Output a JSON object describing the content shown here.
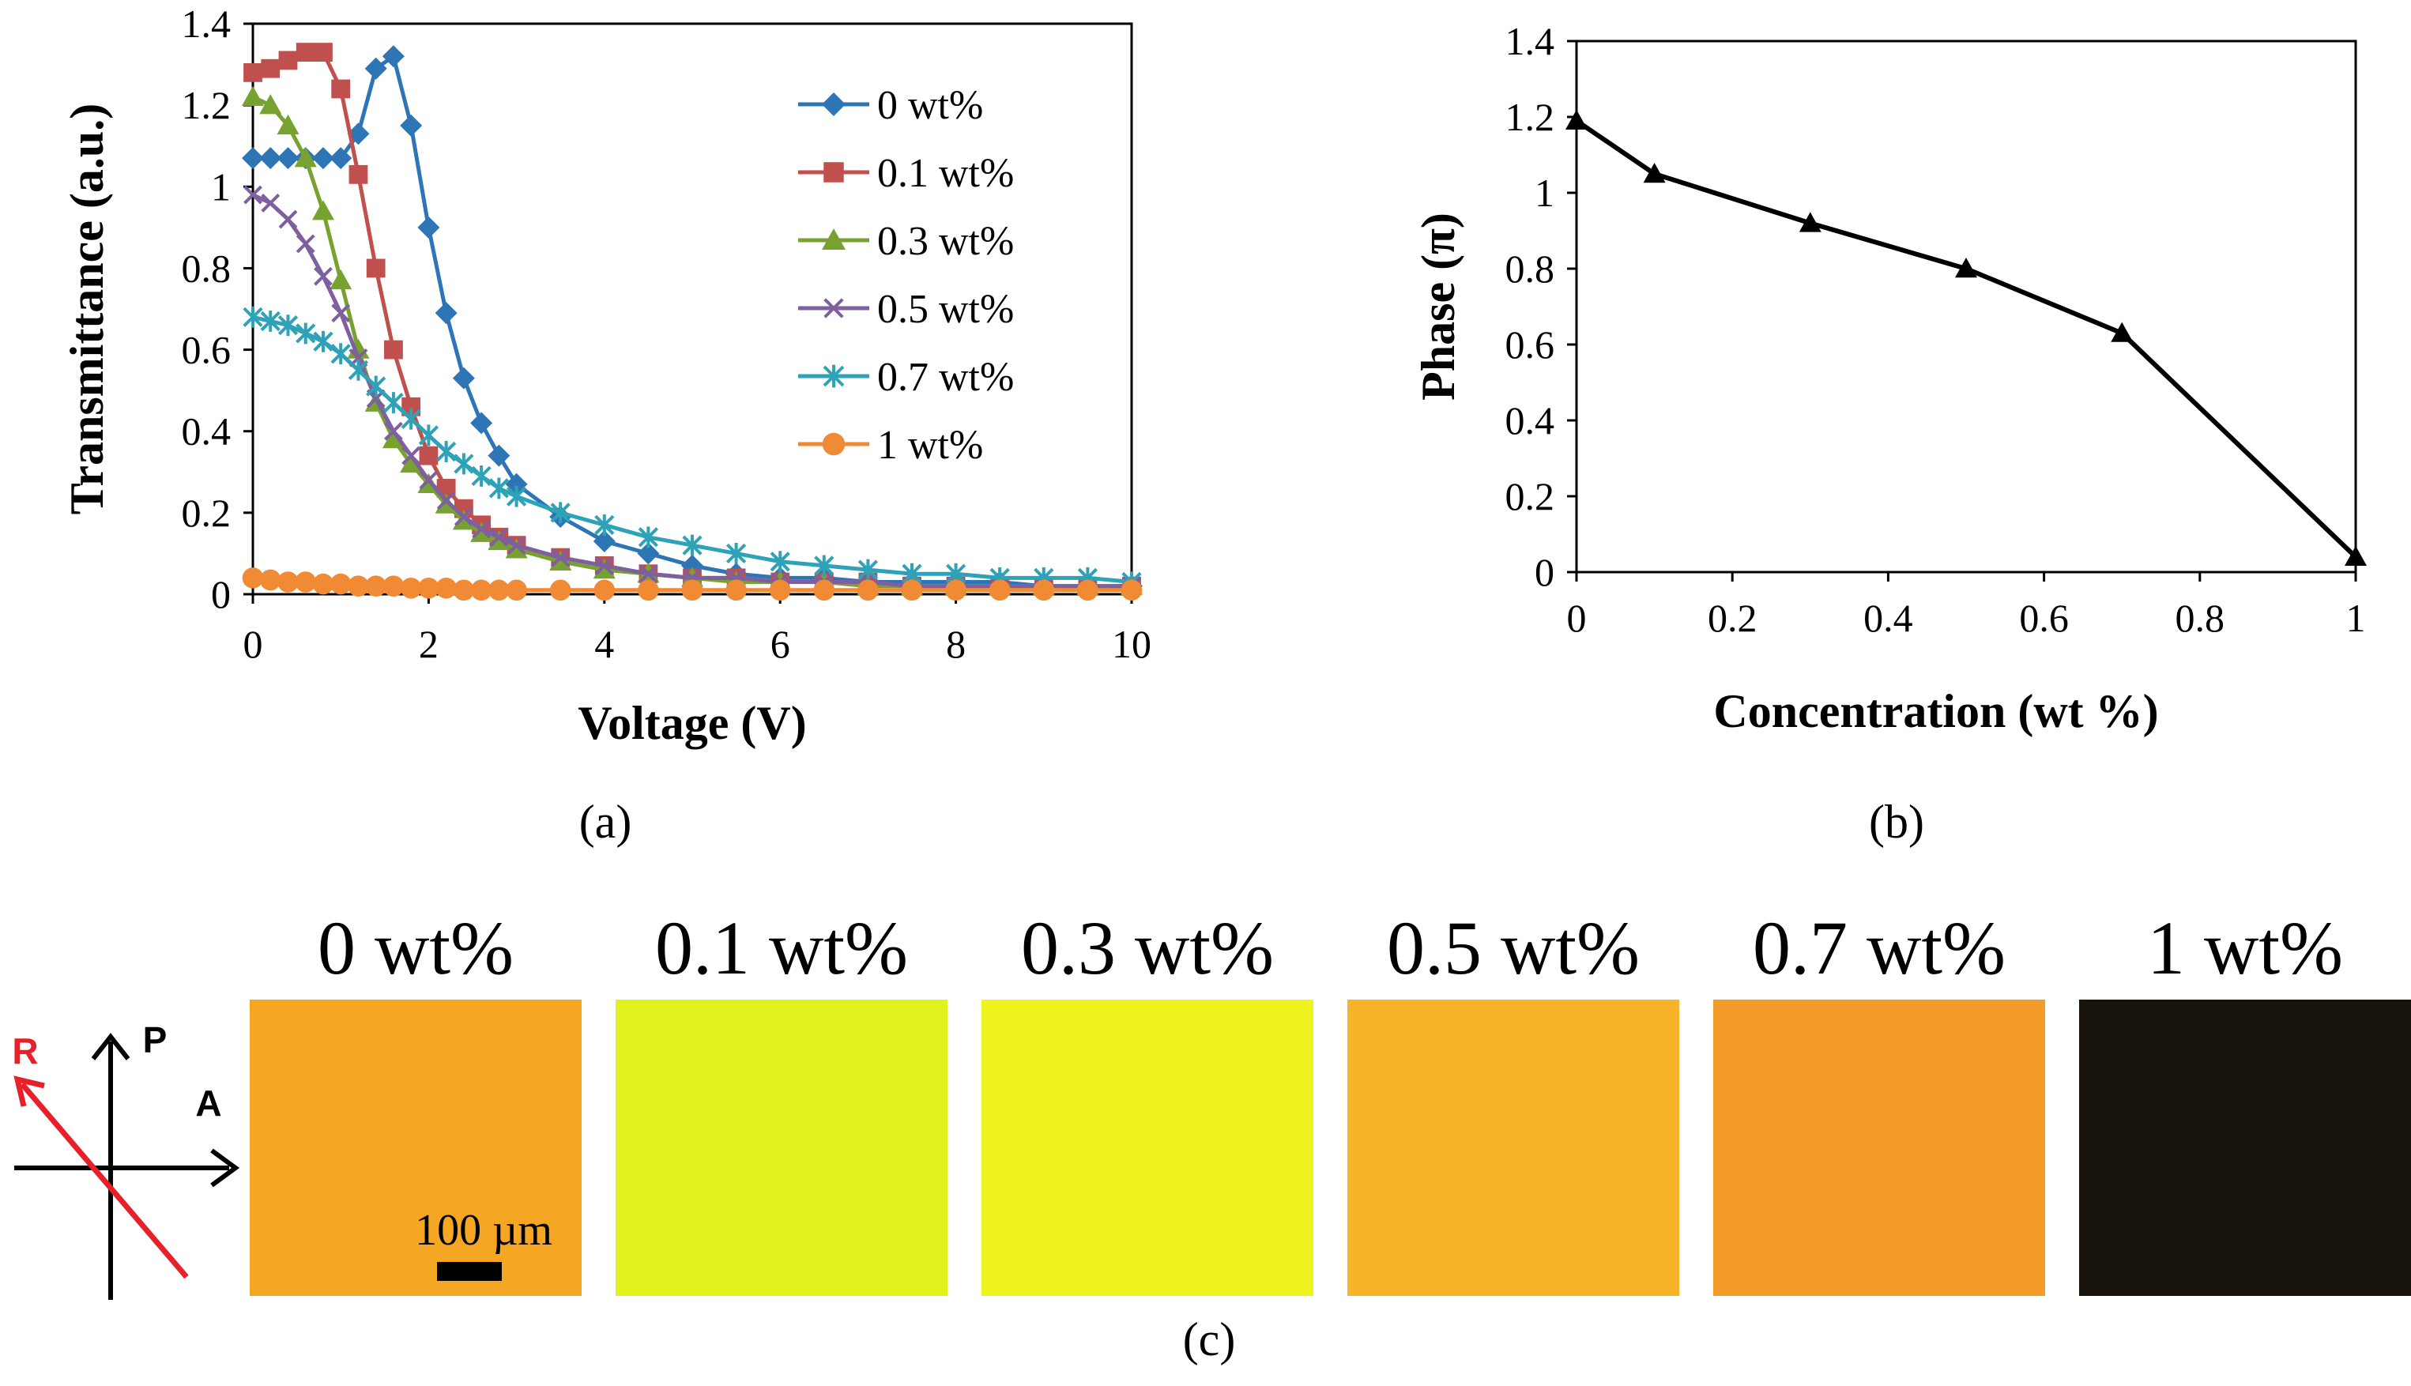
{
  "chart_data": [
    {
      "id": "a",
      "type": "line",
      "panel_label": "(a)",
      "xlabel": "Voltage (V)",
      "ylabel": "Transmittance (a.u.)",
      "xlim": [
        0,
        10
      ],
      "ylim": [
        0,
        1.4
      ],
      "xticks": [
        0,
        2,
        4,
        6,
        8,
        10
      ],
      "yticks": [
        0,
        0.2,
        0.4,
        0.6,
        0.8,
        1,
        1.2,
        1.4
      ],
      "xtick_labels": [
        "0",
        "2",
        "4",
        "6",
        "8",
        "10"
      ],
      "ytick_labels": [
        "0",
        "0.2",
        "0.4",
        "0.6",
        "0.8",
        "1",
        "1.2",
        "1.4"
      ],
      "grid": false,
      "legend_position": "top-right",
      "series": [
        {
          "name": "0 wt%",
          "color": "#2E75B6",
          "marker": "diamond",
          "x": [
            0,
            0.2,
            0.4,
            0.6,
            0.8,
            1.0,
            1.2,
            1.4,
            1.6,
            1.8,
            2.0,
            2.2,
            2.4,
            2.6,
            2.8,
            3.0,
            3.5,
            4.0,
            4.5,
            5.0,
            5.5,
            6.0,
            6.5,
            7.0,
            7.5,
            8.0,
            8.5,
            9.0,
            9.5,
            10.0
          ],
          "y": [
            1.07,
            1.07,
            1.07,
            1.07,
            1.07,
            1.07,
            1.13,
            1.29,
            1.32,
            1.15,
            0.9,
            0.69,
            0.53,
            0.42,
            0.34,
            0.27,
            0.19,
            0.13,
            0.1,
            0.07,
            0.05,
            0.04,
            0.04,
            0.03,
            0.03,
            0.03,
            0.03,
            0.02,
            0.02,
            0.02
          ]
        },
        {
          "name": "0.1 wt%",
          "color": "#C0504D",
          "marker": "square",
          "x": [
            0,
            0.2,
            0.4,
            0.6,
            0.8,
            1.0,
            1.2,
            1.4,
            1.6,
            1.8,
            2.0,
            2.2,
            2.4,
            2.6,
            2.8,
            3.0,
            3.5,
            4.0,
            4.5,
            5.0,
            5.5,
            6.0,
            6.5,
            7.0,
            7.5,
            8.0,
            8.5,
            9.0,
            9.5,
            10.0
          ],
          "y": [
            1.28,
            1.29,
            1.31,
            1.33,
            1.33,
            1.24,
            1.03,
            0.8,
            0.6,
            0.46,
            0.34,
            0.26,
            0.21,
            0.17,
            0.14,
            0.12,
            0.09,
            0.07,
            0.05,
            0.04,
            0.04,
            0.03,
            0.03,
            0.03,
            0.02,
            0.02,
            0.02,
            0.02,
            0.02,
            0.02
          ]
        },
        {
          "name": "0.3 wt%",
          "color": "#77A22F",
          "marker": "triangle",
          "x": [
            0,
            0.2,
            0.4,
            0.6,
            0.8,
            1.0,
            1.2,
            1.4,
            1.6,
            1.8,
            2.0,
            2.2,
            2.4,
            2.6,
            2.8,
            3.0,
            3.5,
            4.0,
            4.5,
            5.0,
            5.5,
            6.0,
            6.5,
            7.0,
            7.5,
            8.0,
            8.5,
            9.0,
            9.5,
            10.0
          ],
          "y": [
            1.22,
            1.2,
            1.15,
            1.07,
            0.94,
            0.77,
            0.6,
            0.47,
            0.38,
            0.32,
            0.27,
            0.22,
            0.18,
            0.15,
            0.13,
            0.11,
            0.08,
            0.06,
            0.05,
            0.04,
            0.03,
            0.03,
            0.03,
            0.02,
            0.02,
            0.02,
            0.02,
            0.02,
            0.02,
            0.02
          ]
        },
        {
          "name": "0.5 wt%",
          "color": "#7E5F9F",
          "marker": "x",
          "x": [
            0,
            0.2,
            0.4,
            0.6,
            0.8,
            1.0,
            1.2,
            1.4,
            1.6,
            1.8,
            2.0,
            2.2,
            2.4,
            2.6,
            2.8,
            3.0,
            3.5,
            4.0,
            4.5,
            5.0,
            5.5,
            6.0,
            6.5,
            7.0,
            7.5,
            8.0,
            8.5,
            9.0,
            9.5,
            10.0
          ],
          "y": [
            0.98,
            0.96,
            0.92,
            0.86,
            0.78,
            0.69,
            0.58,
            0.48,
            0.4,
            0.34,
            0.28,
            0.23,
            0.19,
            0.16,
            0.14,
            0.12,
            0.09,
            0.07,
            0.05,
            0.04,
            0.04,
            0.03,
            0.03,
            0.03,
            0.02,
            0.02,
            0.02,
            0.02,
            0.02,
            0.02
          ]
        },
        {
          "name": "0.7 wt%",
          "color": "#2EA3B8",
          "marker": "star",
          "x": [
            0,
            0.2,
            0.4,
            0.6,
            0.8,
            1.0,
            1.2,
            1.4,
            1.6,
            1.8,
            2.0,
            2.2,
            2.4,
            2.6,
            2.8,
            3.0,
            3.5,
            4.0,
            4.5,
            5.0,
            5.5,
            6.0,
            6.5,
            7.0,
            7.5,
            8.0,
            8.5,
            9.0,
            9.5,
            10.0
          ],
          "y": [
            0.68,
            0.67,
            0.66,
            0.64,
            0.62,
            0.59,
            0.55,
            0.51,
            0.47,
            0.43,
            0.39,
            0.35,
            0.32,
            0.29,
            0.26,
            0.24,
            0.2,
            0.17,
            0.14,
            0.12,
            0.1,
            0.08,
            0.07,
            0.06,
            0.05,
            0.05,
            0.04,
            0.04,
            0.04,
            0.03
          ]
        },
        {
          "name": "1 wt%",
          "color": "#F08A35",
          "marker": "circle",
          "x": [
            0,
            0.2,
            0.4,
            0.6,
            0.8,
            1.0,
            1.2,
            1.4,
            1.6,
            1.8,
            2.0,
            2.2,
            2.4,
            2.6,
            2.8,
            3.0,
            3.5,
            4.0,
            4.5,
            5.0,
            5.5,
            6.0,
            6.5,
            7.0,
            7.5,
            8.0,
            8.5,
            9.0,
            9.5,
            10.0
          ],
          "y": [
            0.04,
            0.035,
            0.03,
            0.03,
            0.025,
            0.025,
            0.02,
            0.02,
            0.02,
            0.015,
            0.015,
            0.015,
            0.01,
            0.01,
            0.01,
            0.01,
            0.01,
            0.01,
            0.01,
            0.01,
            0.01,
            0.01,
            0.01,
            0.01,
            0.01,
            0.01,
            0.01,
            0.01,
            0.01,
            0.01
          ]
        }
      ]
    },
    {
      "id": "b",
      "type": "line",
      "panel_label": "(b)",
      "xlabel": "Concentration (wt %)",
      "ylabel": "Phase (π)",
      "xlim": [
        0,
        1
      ],
      "ylim": [
        0,
        1.4
      ],
      "xticks": [
        0,
        0.2,
        0.4,
        0.6,
        0.8,
        1
      ],
      "yticks": [
        0,
        0.2,
        0.4,
        0.6,
        0.8,
        1,
        1.2,
        1.4
      ],
      "xtick_labels": [
        "0",
        "0.2",
        "0.4",
        "0.6",
        "0.8",
        "1"
      ],
      "ytick_labels": [
        "0",
        "0.2",
        "0.4",
        "0.6",
        "0.8",
        "1",
        "1.2",
        "1.4"
      ],
      "grid": false,
      "series": [
        {
          "name": "Phase",
          "color": "#000000",
          "marker": "triangle",
          "x": [
            0,
            0.1,
            0.3,
            0.5,
            0.7,
            1.0
          ],
          "y": [
            1.19,
            1.05,
            0.92,
            0.8,
            0.63,
            0.04
          ]
        }
      ]
    }
  ],
  "images_panel": {
    "panel_label": "(c)",
    "scale_bar_label": "100 µm",
    "polarizer_labels": {
      "R": "R",
      "P": "P",
      "A": "A"
    },
    "colors": {
      "rubbing": "#E8202A",
      "axes": "#000000"
    },
    "samples": [
      {
        "label": "0 wt%",
        "color": "#F5A623"
      },
      {
        "label": "0.1 wt%",
        "color": "#E2F21C"
      },
      {
        "label": "0.3 wt%",
        "color": "#F0F41E"
      },
      {
        "label": "0.5 wt%",
        "color": "#F7B428"
      },
      {
        "label": "0.7 wt%",
        "color": "#F39C2A"
      },
      {
        "label": "1 wt%",
        "color": "#17130C"
      }
    ]
  }
}
